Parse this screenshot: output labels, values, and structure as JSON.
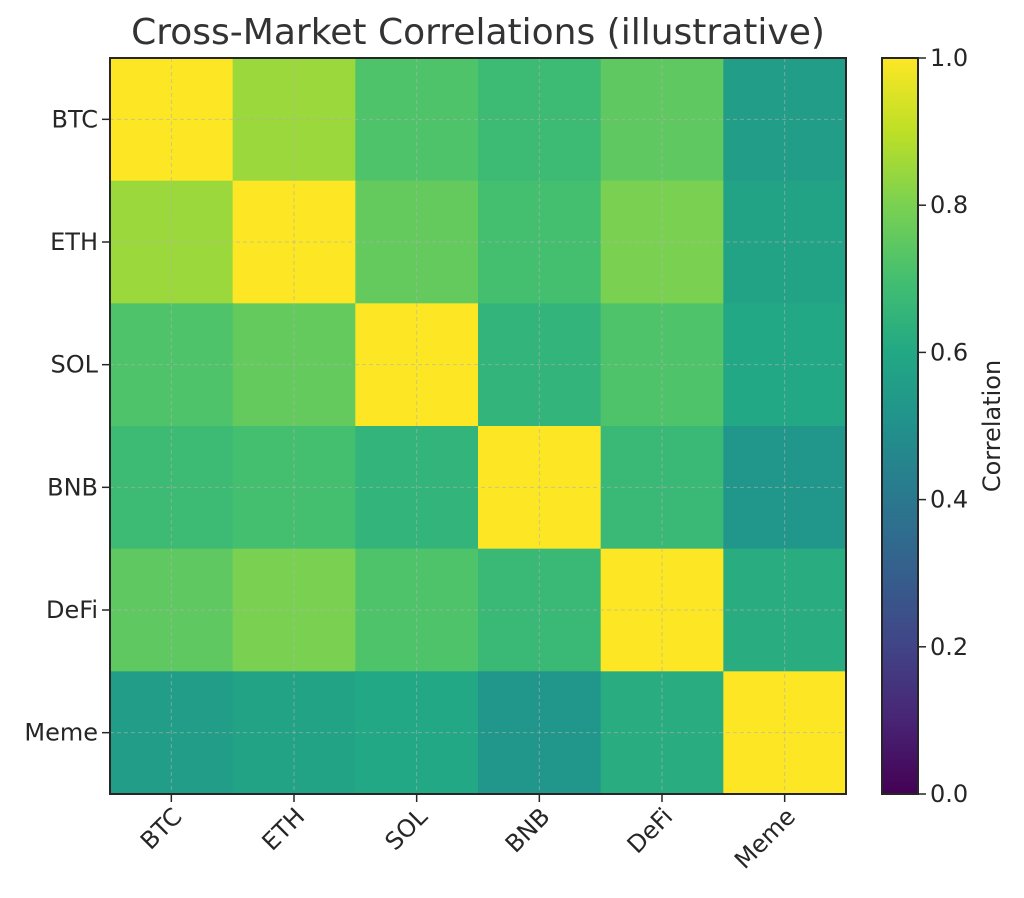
{
  "chart_data": {
    "type": "heatmap",
    "title": "Cross-Market Correlations (illustrative)",
    "xlabel": "",
    "ylabel": "",
    "rows": [
      "BTC",
      "ETH",
      "SOL",
      "BNB",
      "DeFi",
      "Meme"
    ],
    "columns": [
      "BTC",
      "ETH",
      "SOL",
      "BNB",
      "DeFi",
      "Meme"
    ],
    "values": [
      [
        1.0,
        0.85,
        0.72,
        0.68,
        0.75,
        0.55
      ],
      [
        0.85,
        1.0,
        0.76,
        0.7,
        0.8,
        0.58
      ],
      [
        0.72,
        0.76,
        1.0,
        0.65,
        0.72,
        0.6
      ],
      [
        0.68,
        0.7,
        0.65,
        1.0,
        0.67,
        0.52
      ],
      [
        0.75,
        0.8,
        0.72,
        0.67,
        1.0,
        0.62
      ],
      [
        0.55,
        0.58,
        0.6,
        0.52,
        0.62,
        1.0
      ]
    ],
    "colormap": "viridis",
    "colorbar": {
      "label": "Correlation",
      "range": [
        0.0,
        1.0
      ],
      "ticks": [
        "0.0",
        "0.2",
        "0.4",
        "0.6",
        "0.8",
        "1.0"
      ]
    },
    "grid": true
  }
}
